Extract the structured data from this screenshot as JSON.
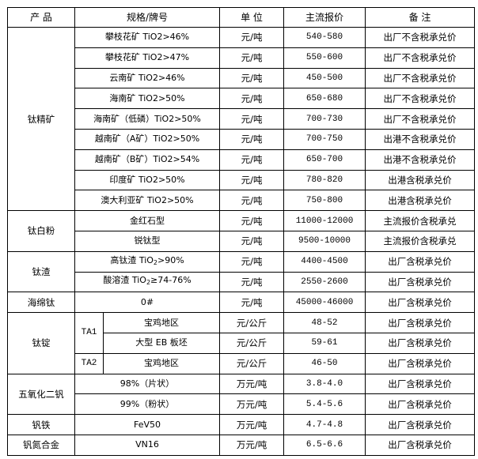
{
  "headers": [
    "产  品",
    "规格/牌号",
    "单 位",
    "主流报价",
    "备  注"
  ],
  "groups": [
    {
      "product": "钛精矿",
      "rows": [
        {
          "spec": "攀枝花矿 TiO2>46%",
          "unit": "元/吨",
          "price": "540-580",
          "note": "出厂不含税承兑价"
        },
        {
          "spec": "攀枝花矿 TiO2>47%",
          "unit": "元/吨",
          "price": "550-600",
          "note": "出厂不含税承兑价"
        },
        {
          "spec": "云南矿 TiO2>46%",
          "unit": "元/吨",
          "price": "450-500",
          "note": "出厂不含税承兑价"
        },
        {
          "spec": "海南矿 TiO2>50%",
          "unit": "元/吨",
          "price": "650-680",
          "note": "出厂不含税承兑价"
        },
        {
          "spec": "海南矿（低磷）TiO2>50%",
          "unit": "元/吨",
          "price": "700-730",
          "note": "出厂不含税承兑价"
        },
        {
          "spec": "越南矿（A矿）TiO2>50%",
          "unit": "元/吨",
          "price": "700-750",
          "note": "出港不含税承兑价"
        },
        {
          "spec": "越南矿（B矿）TiO2>54%",
          "unit": "元/吨",
          "price": "650-700",
          "note": "出港不含税承兑价"
        },
        {
          "spec": "印度矿 TiO2>50%",
          "unit": "元/吨",
          "price": "780-820",
          "note": "出港含税承兑价"
        },
        {
          "spec": "澳大利亚矿 TiO2>50%",
          "unit": "元/吨",
          "price": "750-800",
          "note": "出港含税承兑价"
        }
      ]
    },
    {
      "product": "钛白粉",
      "rows": [
        {
          "spec": "金红石型",
          "unit": "元/吨",
          "price": "11000-12000",
          "note": "主流报价含税承兑"
        },
        {
          "spec": "锐钛型",
          "unit": "元/吨",
          "price": "9500-10000",
          "note": "主流报价含税承兑"
        }
      ]
    },
    {
      "product": "钛渣",
      "rows": [
        {
          "spec_prefix": "高钛渣 TiO",
          "spec_sub": "2",
          "spec_suffix": ">90%",
          "unit": "元/吨",
          "price": "4400-4500",
          "note": "出厂含税承兑价"
        },
        {
          "spec_prefix": "酸溶渣 TiO",
          "spec_sub": "2",
          "spec_suffix": "≥74-76%",
          "unit": "元/吨",
          "price": "2550-2600",
          "note": "出厂含税承兑价"
        }
      ]
    },
    {
      "product": "海绵钛",
      "rows": [
        {
          "spec": "0#",
          "unit": "元/吨",
          "price": "45000-46000",
          "note": "出厂含税承兑价"
        }
      ]
    },
    {
      "product": "钛锭",
      "rows": [
        {
          "grade": "TA1",
          "spec": "宝鸡地区",
          "unit": "元/公斤",
          "price": "48-52",
          "note": "出厂含税承兑价"
        },
        {
          "spec": "大型 EB 板坯",
          "unit": "元/公斤",
          "price": "59-61",
          "note": "出厂含税承兑价"
        },
        {
          "grade": "TA2",
          "spec": "宝鸡地区",
          "unit": "元/公斤",
          "price": "46-50",
          "note": "出厂含税承兑价"
        }
      ]
    },
    {
      "product": "五氧化二钒",
      "rows": [
        {
          "spec": "98%（片状）",
          "unit": "万元/吨",
          "price": "3.8-4.0",
          "note": "出厂含税承兑价"
        },
        {
          "spec": "99%（粉状）",
          "unit": "万元/吨",
          "price": "5.4-5.6",
          "note": "出厂含税承兑价"
        }
      ]
    },
    {
      "product": "钒铁",
      "rows": [
        {
          "spec": "FeV50",
          "unit": "万元/吨",
          "price": "4.7-4.8",
          "note": "出厂含税承兑价"
        }
      ]
    },
    {
      "product": "钒氮合金",
      "rows": [
        {
          "spec": "VN16",
          "unit": "万元/吨",
          "price": "6.5-6.6",
          "note": "出厂含税承兑价"
        }
      ]
    }
  ]
}
